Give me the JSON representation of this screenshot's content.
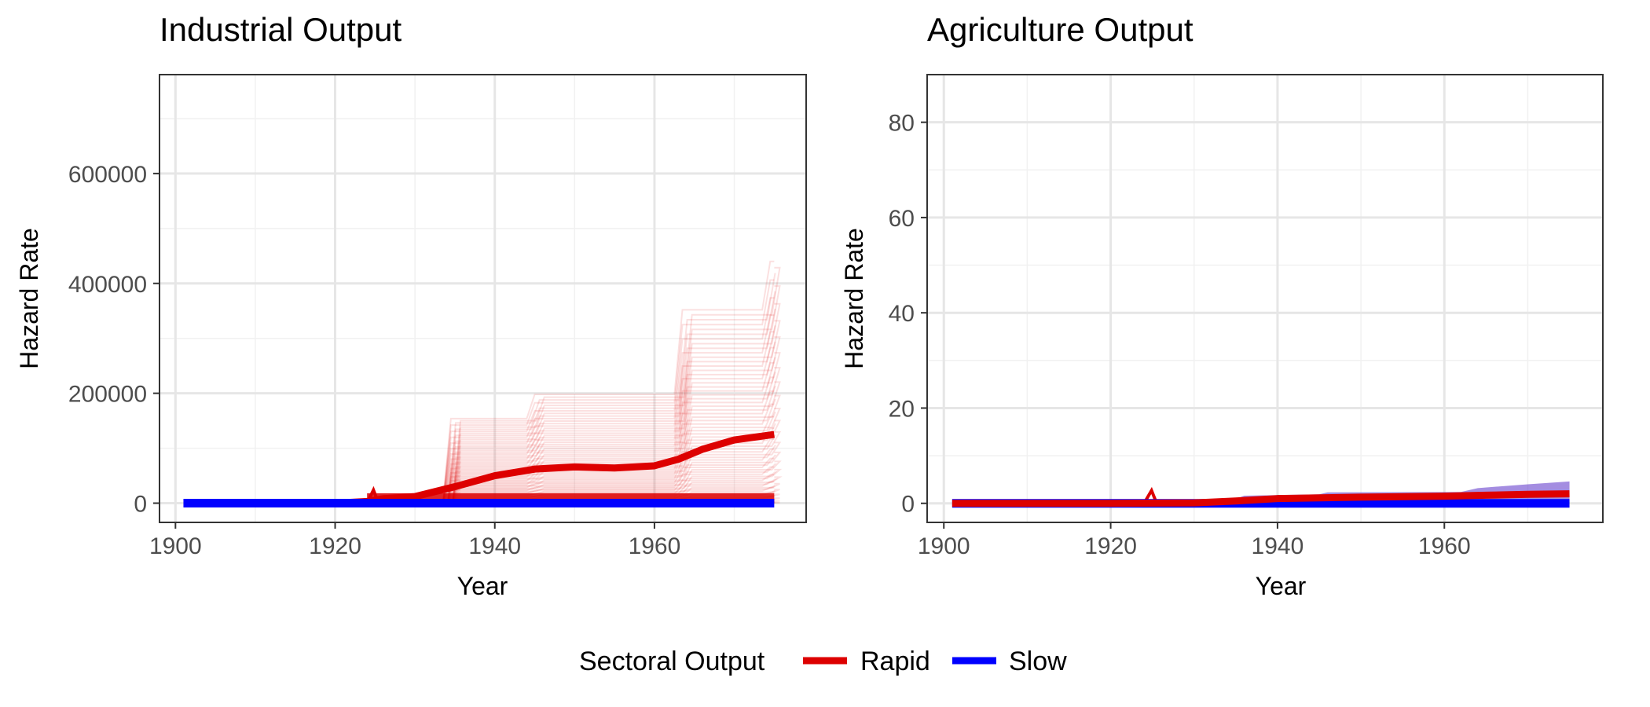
{
  "legend": {
    "title": "Sectoral Output",
    "entries": [
      {
        "label": "Rapid",
        "color": "#dd0000"
      },
      {
        "label": "Slow",
        "color": "#0000ff"
      }
    ]
  },
  "chart_data": [
    {
      "type": "line",
      "title": "Industrial Output",
      "xlabel": "Year",
      "ylabel": "Hazard Rate",
      "xlim": [
        1898,
        1979
      ],
      "ylim": [
        -35000,
        780000
      ],
      "xticks": [
        1900,
        1920,
        1940,
        1960
      ],
      "xtick_labels": [
        "1900",
        "1920",
        "1940",
        "1960"
      ],
      "yticks": [
        0,
        200000,
        400000,
        600000
      ],
      "ytick_labels": [
        "0",
        "200000",
        "400000",
        "600000"
      ],
      "grid": true,
      "series": [
        {
          "name": "Rapid",
          "color": "#dd0000",
          "x": [
            1901,
            1910,
            1920,
            1924,
            1926,
            1930,
            1935,
            1940,
            1945,
            1950,
            1955,
            1960,
            1963,
            1966,
            1970,
            1975
          ],
          "y": [
            0,
            0,
            0,
            3000,
            8000,
            12000,
            30000,
            50000,
            62000,
            66000,
            64000,
            68000,
            80000,
            98000,
            115000,
            125000
          ]
        },
        {
          "name": "Slow",
          "color": "#0000ff",
          "x": [
            1901,
            1975
          ],
          "y": [
            0,
            0
          ]
        }
      ]
    },
    {
      "type": "line",
      "title": "Agriculture Output",
      "xlabel": "Year",
      "ylabel": "Hazard Rate",
      "xlim": [
        1898,
        1979
      ],
      "ylim": [
        -4,
        90
      ],
      "xticks": [
        1900,
        1920,
        1940,
        1960
      ],
      "xtick_labels": [
        "1900",
        "1920",
        "1940",
        "1960"
      ],
      "yticks": [
        0,
        20,
        40,
        60,
        80
      ],
      "ytick_labels": [
        "0",
        "20",
        "40",
        "60",
        "80"
      ],
      "grid": true,
      "series": [
        {
          "name": "Rapid",
          "color": "#dd0000",
          "x": [
            1901,
            1920,
            1930,
            1935,
            1940,
            1950,
            1960,
            1965,
            1970,
            1975
          ],
          "y": [
            0,
            0,
            0.1,
            0.5,
            1.0,
            1.3,
            1.5,
            1.7,
            1.9,
            2.0
          ]
        },
        {
          "name": "Slow",
          "color": "#0000ff",
          "x": [
            1901,
            1975
          ],
          "y": [
            0,
            0
          ]
        }
      ]
    }
  ]
}
